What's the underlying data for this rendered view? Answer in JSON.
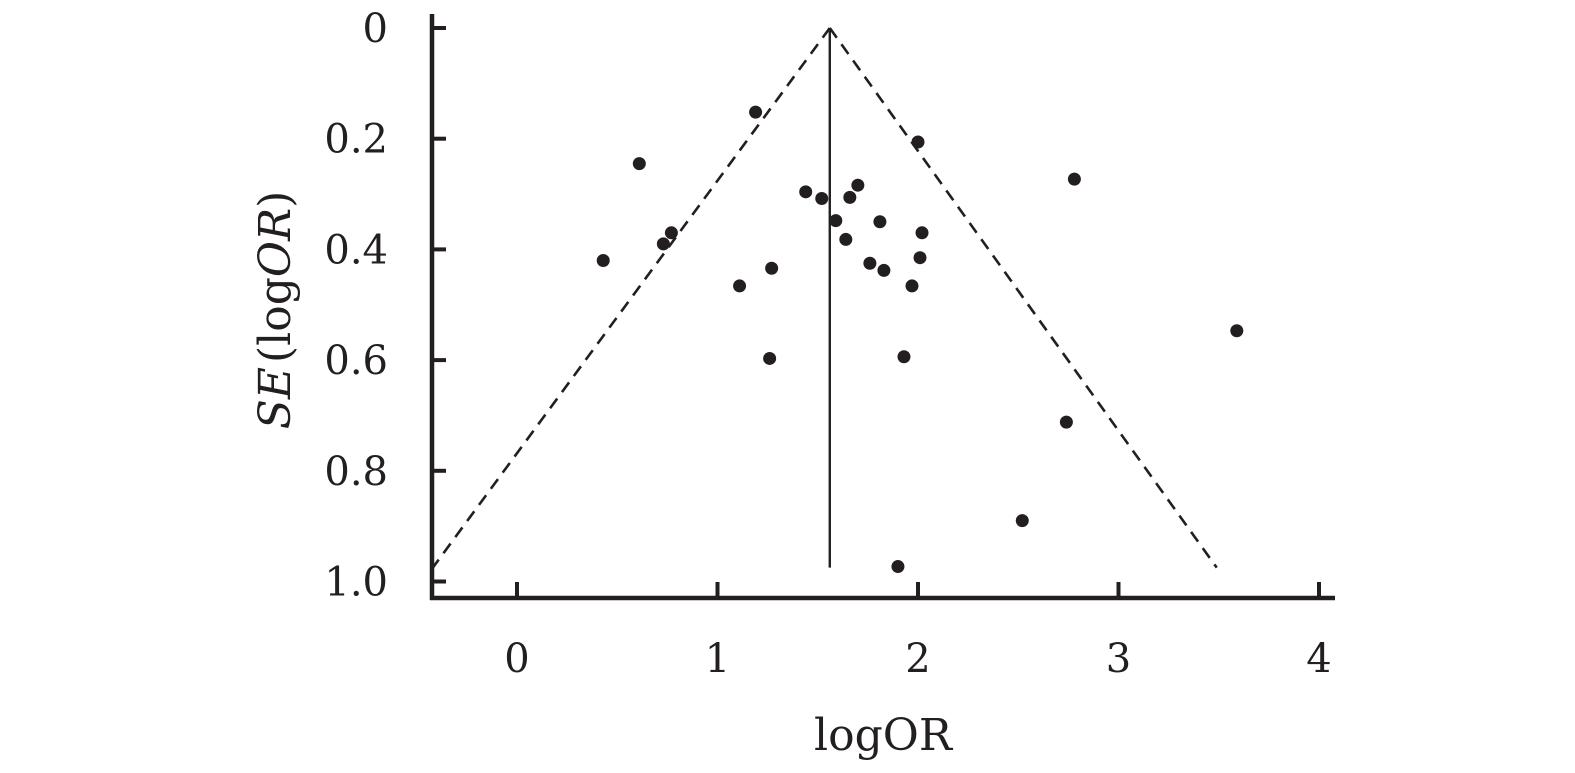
{
  "chart_data": {
    "type": "scatter",
    "subtype": "funnel-plot",
    "xlabel": "logOR",
    "ylabel_parts": [
      "SE",
      "(",
      "logOR",
      ")"
    ],
    "xlim": [
      -0.42,
      4.07
    ],
    "ylim": [
      0,
      1.03
    ],
    "y_inverted": true,
    "xticks": [
      0,
      1,
      2,
      3,
      4
    ],
    "xtick_labels": [
      "0",
      "1",
      "2",
      "3",
      "4"
    ],
    "yticks": [
      0,
      0.2,
      0.4,
      0.6,
      0.8,
      1.0
    ],
    "ytick_labels": [
      "0",
      "0.2",
      "0.4",
      "0.6",
      "0.8",
      "1.0"
    ],
    "grid": false,
    "pooled_estimate": 1.56,
    "reference_line": {
      "x": 1.56,
      "y_from": 0,
      "y_to": 0.975
    },
    "funnel_left": [
      [
        1.56,
        0
      ],
      [
        -0.43,
        0.98
      ]
    ],
    "funnel_right": [
      [
        1.56,
        0
      ],
      [
        3.49,
        0.975
      ]
    ],
    "points": [
      {
        "x": 0.43,
        "y": 0.42
      },
      {
        "x": 0.61,
        "y": 0.245
      },
      {
        "x": 0.73,
        "y": 0.39
      },
      {
        "x": 0.77,
        "y": 0.37
      },
      {
        "x": 1.11,
        "y": 0.466
      },
      {
        "x": 1.19,
        "y": 0.152
      },
      {
        "x": 1.26,
        "y": 0.597
      },
      {
        "x": 1.27,
        "y": 0.434
      },
      {
        "x": 1.44,
        "y": 0.296
      },
      {
        "x": 1.52,
        "y": 0.308
      },
      {
        "x": 1.59,
        "y": 0.348
      },
      {
        "x": 1.64,
        "y": 0.382
      },
      {
        "x": 1.66,
        "y": 0.306
      },
      {
        "x": 1.7,
        "y": 0.284
      },
      {
        "x": 1.76,
        "y": 0.425
      },
      {
        "x": 1.81,
        "y": 0.35
      },
      {
        "x": 1.83,
        "y": 0.438
      },
      {
        "x": 1.9,
        "y": 0.973
      },
      {
        "x": 1.93,
        "y": 0.594
      },
      {
        "x": 1.97,
        "y": 0.466
      },
      {
        "x": 2.0,
        "y": 0.206
      },
      {
        "x": 2.01,
        "y": 0.415
      },
      {
        "x": 2.02,
        "y": 0.37
      },
      {
        "x": 2.52,
        "y": 0.89
      },
      {
        "x": 2.74,
        "y": 0.712
      },
      {
        "x": 2.78,
        "y": 0.273
      },
      {
        "x": 3.59,
        "y": 0.547
      }
    ]
  },
  "colors": {
    "ink": "#231f20",
    "background": "#ffffff"
  }
}
